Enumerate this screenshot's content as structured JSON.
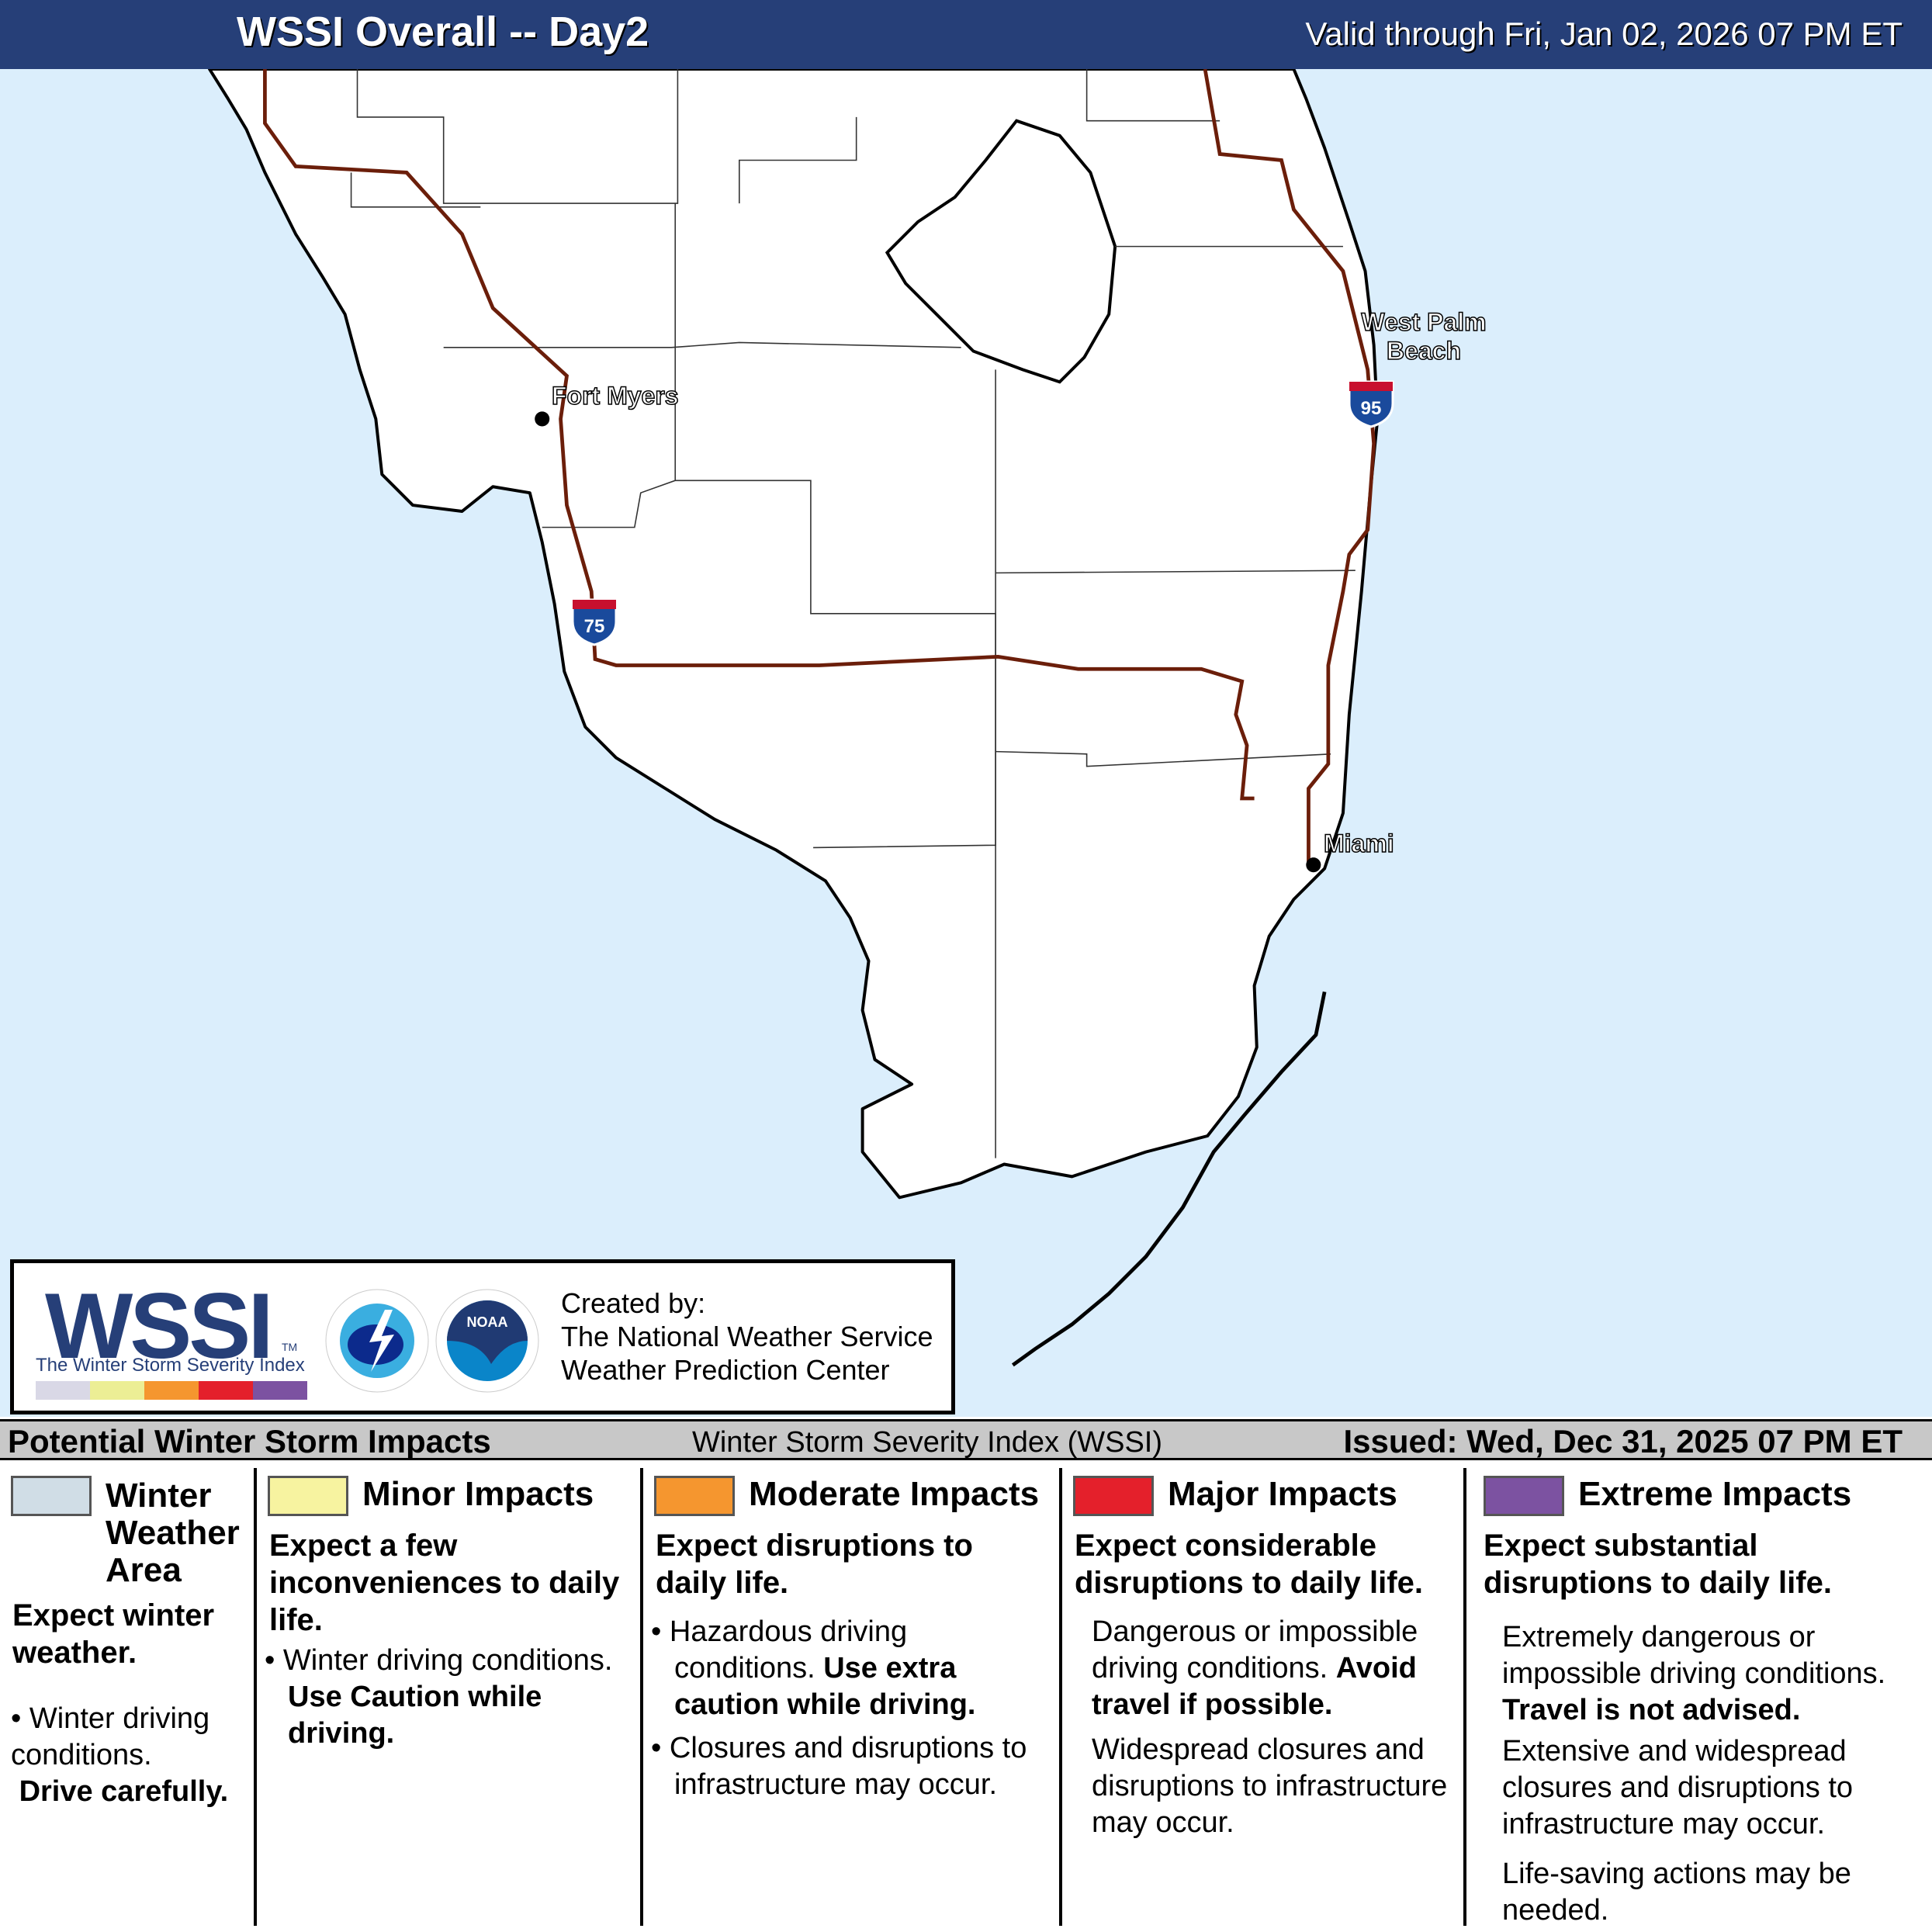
{
  "header": {
    "title": "WSSI Overall -- Day2",
    "valid": "Valid through Fri, Jan 02, 2026 07 PM ET"
  },
  "map": {
    "cities": [
      "Fort Myers",
      "West Palm Beach",
      "Miami"
    ],
    "highways": [
      "75",
      "95"
    ],
    "colors": {
      "water": "#dbeefc",
      "land": "#ffffff",
      "interstate": "#6b1e0a"
    }
  },
  "logo": {
    "wssi": "WSSI",
    "tm": "TM",
    "subtitle": "The Winter Storm Severity Index",
    "nws": "NATIONAL WEATHER SERVICE",
    "noaa": "NOAA",
    "created_by": "Created by:",
    "org1": "The National Weather Service",
    "org2": "Weather Prediction Center"
  },
  "legend_header": {
    "left": "Potential Winter Storm Impacts",
    "center": "Winter Storm Severity Index (WSSI)",
    "right": "Issued: Wed, Dec 31, 2025 07 PM ET"
  },
  "categories": [
    {
      "title": "Winter Weather Area",
      "color": "#d0dde6",
      "lead": "Expect winter weather.",
      "b1": "Winter driving conditions.",
      "b1_bold": "Drive carefully."
    },
    {
      "title": "Minor Impacts",
      "color": "#f7f3a0",
      "lead": "Expect a few inconveniences to daily life.",
      "b1": "Winter driving conditions.",
      "b1_bold": "Use Caution while driving."
    },
    {
      "title": "Moderate Impacts",
      "color": "#f5962f",
      "lead": "Expect disruptions to daily life.",
      "b1": "Hazardous driving conditions.",
      "b1_bold": "Use extra caution while driving.",
      "b2": "Closures and disruptions to infrastructure may occur."
    },
    {
      "title": "Major Impacts",
      "color": "#e4202b",
      "lead": "Expect considerable disruptions to daily life.",
      "b1": "Dangerous or impossible driving conditions.",
      "b1_bold": "Avoid travel if possible.",
      "b2": "Widespread closures and disruptions to infrastructure may occur."
    },
    {
      "title": "Extreme Impacts",
      "color": "#7c52a1",
      "lead": "Expect substantial disruptions to daily life.",
      "b1": "Extremely dangerous or impossible driving conditions.",
      "b1_bold": "Travel is not advised.",
      "b2": "Extensive and widespread closures and disruptions to infrastructure may occur.",
      "b3": "Life-saving actions may be needed."
    }
  ]
}
